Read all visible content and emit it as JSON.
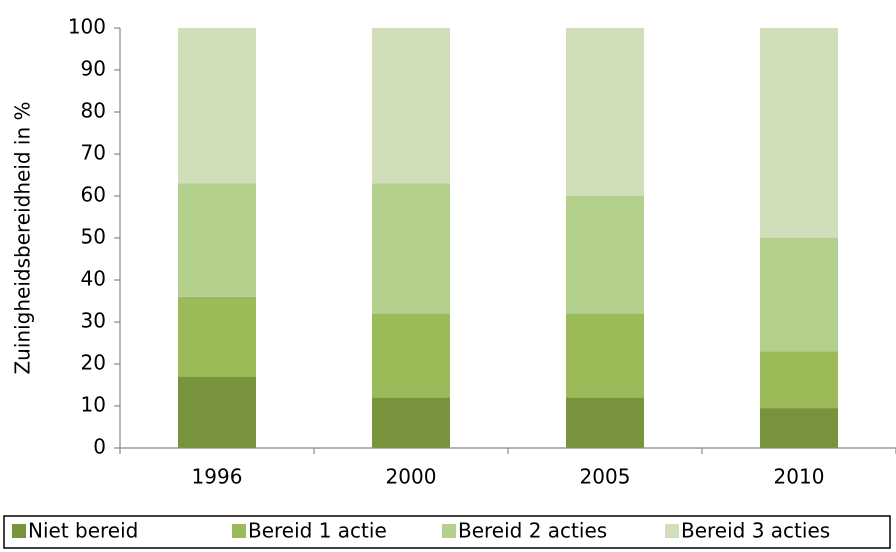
{
  "chart_data": {
    "type": "stacked_bar",
    "y_label": "Zuinigheidsbereidheid in %",
    "categories": [
      "1996",
      "2000",
      "2005",
      "2010"
    ],
    "series": [
      {
        "name": "Niet bereid",
        "color": "#77933c",
        "values": [
          17,
          12,
          12,
          9.5
        ]
      },
      {
        "name": "Bereid 1 actie",
        "color": "#9bbb59",
        "values": [
          19,
          20,
          20,
          13.5
        ]
      },
      {
        "name": "Bereid 2 acties",
        "color": "#b3cf8c",
        "values": [
          27,
          31,
          28,
          27
        ]
      },
      {
        "name": "Bereid 3 acties",
        "color": "#d0deb9",
        "values": [
          37,
          37,
          40,
          50
        ]
      }
    ],
    "ylim": [
      0,
      100
    ],
    "yticks": [
      0,
      10,
      20,
      30,
      40,
      50,
      60,
      70,
      80,
      90,
      100
    ],
    "grid": false,
    "legend": "bottom"
  }
}
